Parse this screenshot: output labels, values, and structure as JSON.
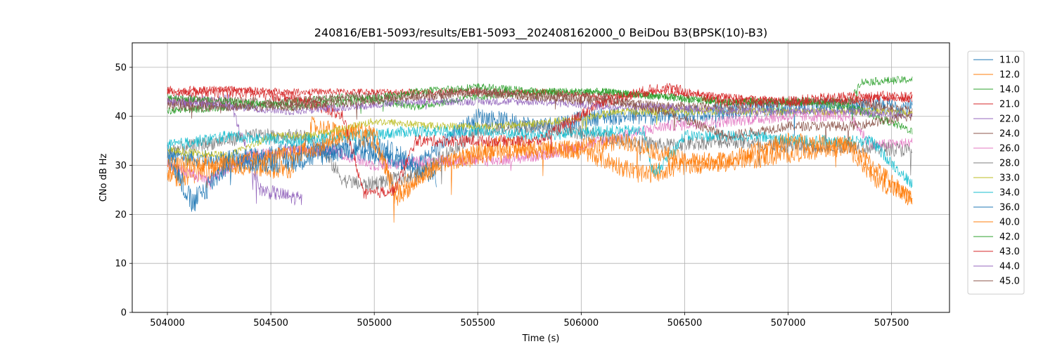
{
  "chart_data": {
    "type": "line",
    "title": "240816/EB1-5093/results/EB1-5093__202408162000_0 BeiDou B3(BPSK(10)-B3)",
    "xlabel": "Time (s)",
    "ylabel": "CNo dB Hz",
    "xlim": [
      503830,
      507780
    ],
    "ylim": [
      0,
      55
    ],
    "xticks": [
      504000,
      504500,
      505000,
      505500,
      506000,
      506500,
      507000,
      507500
    ],
    "yticks": [
      0,
      10,
      20,
      30,
      40,
      50
    ],
    "grid": true,
    "legend_position": "right",
    "series": [
      {
        "name": "11.0",
        "color": "#1f77b4",
        "start": 504000,
        "end": 507600,
        "points": [
          [
            504000,
            32
          ],
          [
            504300,
            31
          ],
          [
            504600,
            33
          ],
          [
            504900,
            33
          ],
          [
            505200,
            30
          ],
          [
            505500,
            40
          ],
          [
            505800,
            38
          ],
          [
            506100,
            40
          ],
          [
            506400,
            40
          ],
          [
            506700,
            41
          ],
          [
            507000,
            42
          ],
          [
            507300,
            42
          ],
          [
            507600,
            42
          ]
        ],
        "noise": 1.8
      },
      {
        "name": "12.0",
        "color": "#ff7f0e",
        "start": 504000,
        "end": 507600,
        "points": [
          [
            504000,
            27
          ],
          [
            504300,
            30
          ],
          [
            504600,
            29
          ],
          [
            504700,
            38
          ],
          [
            505000,
            35
          ],
          [
            505100,
            25
          ],
          [
            505300,
            30
          ],
          [
            505600,
            34
          ],
          [
            506000,
            33
          ],
          [
            506300,
            28
          ],
          [
            506500,
            30
          ],
          [
            506800,
            31
          ],
          [
            507100,
            33
          ],
          [
            507300,
            34
          ],
          [
            507400,
            28
          ],
          [
            507600,
            23
          ]
        ],
        "noise": 2.0
      },
      {
        "name": "14.0",
        "color": "#2ca02c",
        "start": 504000,
        "end": 507600,
        "points": [
          [
            504000,
            41
          ],
          [
            504300,
            42
          ],
          [
            504600,
            43
          ],
          [
            504900,
            44
          ],
          [
            505200,
            42
          ],
          [
            505500,
            44
          ],
          [
            505800,
            45
          ],
          [
            506100,
            45
          ],
          [
            506400,
            44
          ],
          [
            506700,
            43
          ],
          [
            507000,
            43
          ],
          [
            507300,
            43
          ],
          [
            507350,
            47
          ],
          [
            507600,
            47.5
          ]
        ],
        "noise": 0.8
      },
      {
        "name": "21.0",
        "color": "#d62728",
        "start": 504000,
        "end": 507600,
        "points": [
          [
            504000,
            45
          ],
          [
            504300,
            45.5
          ],
          [
            504600,
            45
          ],
          [
            504900,
            45
          ],
          [
            505200,
            45
          ],
          [
            505500,
            45
          ],
          [
            505800,
            45
          ],
          [
            506100,
            44
          ],
          [
            506400,
            45
          ],
          [
            506700,
            44
          ],
          [
            507000,
            43
          ],
          [
            507300,
            43
          ],
          [
            507400,
            44
          ],
          [
            507600,
            43.5
          ]
        ],
        "noise": 0.7
      },
      {
        "name": "22.0",
        "color": "#9467bd",
        "start": 504000,
        "end": 504650,
        "points": [
          [
            504000,
            43
          ],
          [
            504300,
            43
          ],
          [
            504450,
            25
          ],
          [
            504650,
            23
          ]
        ],
        "noise": 1.5
      },
      {
        "name": "24.0",
        "color": "#8c564b",
        "start": 504000,
        "end": 507600,
        "points": [
          [
            504000,
            43
          ],
          [
            504300,
            43
          ],
          [
            504600,
            43
          ],
          [
            504900,
            44
          ],
          [
            505200,
            44
          ],
          [
            505500,
            45
          ],
          [
            505800,
            44
          ],
          [
            506100,
            43
          ],
          [
            506400,
            42
          ],
          [
            506700,
            42
          ],
          [
            507000,
            43
          ],
          [
            507300,
            43
          ],
          [
            507600,
            41
          ]
        ],
        "noise": 1.0
      },
      {
        "name": "26.0",
        "color": "#e377c2",
        "start": 504000,
        "end": 507600,
        "points": [
          [
            504000,
            30
          ],
          [
            504200,
            27
          ],
          [
            504400,
            32
          ],
          [
            504600,
            33
          ],
          [
            504800,
            33
          ],
          [
            505000,
            30
          ],
          [
            505300,
            31
          ],
          [
            505600,
            31
          ],
          [
            505800,
            32
          ],
          [
            506100,
            35
          ],
          [
            506400,
            38
          ],
          [
            506700,
            39
          ],
          [
            507000,
            40
          ],
          [
            507300,
            40
          ],
          [
            507400,
            34
          ],
          [
            507600,
            34.5
          ]
        ],
        "noise": 1.2
      },
      {
        "name": "28.0",
        "color": "#7f7f7f",
        "start": 504000,
        "end": 507600,
        "points": [
          [
            504000,
            33
          ],
          [
            504400,
            36
          ],
          [
            504700,
            36
          ],
          [
            504850,
            27
          ],
          [
            504950,
            26
          ],
          [
            505200,
            28
          ],
          [
            505500,
            37
          ],
          [
            505800,
            38
          ],
          [
            506100,
            36
          ],
          [
            506400,
            34
          ],
          [
            506700,
            35
          ],
          [
            507000,
            34
          ],
          [
            507300,
            34
          ],
          [
            507600,
            33
          ]
        ],
        "noise": 1.5
      },
      {
        "name": "33.0",
        "color": "#bcbd22",
        "start": 504000,
        "end": 507600,
        "points": [
          [
            504000,
            33
          ],
          [
            504300,
            32
          ],
          [
            504500,
            36
          ],
          [
            504700,
            36
          ],
          [
            505000,
            39
          ],
          [
            505300,
            38
          ],
          [
            505600,
            38
          ],
          [
            505900,
            39
          ],
          [
            506200,
            41
          ],
          [
            506500,
            41
          ],
          [
            506800,
            41
          ],
          [
            507100,
            41
          ],
          [
            507400,
            41
          ],
          [
            507600,
            40.5
          ]
        ],
        "noise": 0.8
      },
      {
        "name": "34.0",
        "color": "#17becf",
        "start": 504000,
        "end": 507600,
        "points": [
          [
            504000,
            34
          ],
          [
            504300,
            36
          ],
          [
            504600,
            35
          ],
          [
            504900,
            36
          ],
          [
            505200,
            37
          ],
          [
            505500,
            37
          ],
          [
            505800,
            36
          ],
          [
            506100,
            37
          ],
          [
            506300,
            37
          ],
          [
            506350,
            28
          ],
          [
            506500,
            36
          ],
          [
            506800,
            36
          ],
          [
            507100,
            35
          ],
          [
            507400,
            35
          ],
          [
            507600,
            26
          ]
        ],
        "noise": 1.2
      },
      {
        "name": "36.0",
        "color": "#1f77b4",
        "start": 504000,
        "end": 505300,
        "points": [
          [
            504000,
            33
          ],
          [
            504120,
            22
          ],
          [
            504300,
            31
          ],
          [
            504600,
            31
          ],
          [
            504800,
            33
          ],
          [
            505000,
            34
          ],
          [
            505300,
            28
          ]
        ],
        "noise": 2.5
      },
      {
        "name": "40.0",
        "color": "#ff7f0e",
        "start": 504000,
        "end": 507600,
        "points": [
          [
            504000,
            30
          ],
          [
            504400,
            31
          ],
          [
            504700,
            33
          ],
          [
            504900,
            37
          ],
          [
            505000,
            37
          ],
          [
            505100,
            23
          ],
          [
            505300,
            30
          ],
          [
            505600,
            33
          ],
          [
            505900,
            33
          ],
          [
            506200,
            35
          ],
          [
            506500,
            31
          ],
          [
            506700,
            31
          ],
          [
            507000,
            35
          ],
          [
            507300,
            34
          ],
          [
            507600,
            23
          ]
        ],
        "noise": 1.8
      },
      {
        "name": "42.0",
        "color": "#2ca02c",
        "start": 504000,
        "end": 507600,
        "points": [
          [
            504000,
            44
          ],
          [
            504300,
            43
          ],
          [
            504600,
            42
          ],
          [
            504900,
            43
          ],
          [
            505200,
            45
          ],
          [
            505500,
            46
          ],
          [
            505800,
            45
          ],
          [
            506100,
            45
          ],
          [
            506400,
            44
          ],
          [
            506700,
            43
          ],
          [
            507000,
            43
          ],
          [
            507300,
            42
          ],
          [
            507600,
            37
          ]
        ],
        "noise": 0.8
      },
      {
        "name": "43.0",
        "color": "#d62728",
        "start": 504000,
        "end": 507600,
        "points": [
          [
            504000,
            45
          ],
          [
            504300,
            45
          ],
          [
            504600,
            44
          ],
          [
            504850,
            40
          ],
          [
            504950,
            24
          ],
          [
            505100,
            25
          ],
          [
            505200,
            35
          ],
          [
            505500,
            35
          ],
          [
            505800,
            35
          ],
          [
            506100,
            43
          ],
          [
            506400,
            46
          ],
          [
            506700,
            43
          ],
          [
            507000,
            43
          ],
          [
            507300,
            44
          ],
          [
            507600,
            44
          ]
        ],
        "noise": 1.2
      },
      {
        "name": "44.0",
        "color": "#9467bd",
        "start": 504000,
        "end": 507600,
        "points": [
          [
            504000,
            43
          ],
          [
            504300,
            42
          ],
          [
            504600,
            41
          ],
          [
            504900,
            42
          ],
          [
            505200,
            43
          ],
          [
            505500,
            43
          ],
          [
            505800,
            43
          ],
          [
            506100,
            42
          ],
          [
            506400,
            42
          ],
          [
            506700,
            41
          ],
          [
            507000,
            41
          ],
          [
            507300,
            41
          ],
          [
            507600,
            40
          ]
        ],
        "noise": 0.8
      },
      {
        "name": "45.0",
        "color": "#8c564b",
        "start": 504000,
        "end": 507600,
        "points": [
          [
            504000,
            42
          ],
          [
            504300,
            42
          ],
          [
            504600,
            42
          ],
          [
            504900,
            43
          ],
          [
            505200,
            44
          ],
          [
            505500,
            45
          ],
          [
            505800,
            44
          ],
          [
            506100,
            44
          ],
          [
            506400,
            41
          ],
          [
            506700,
            36
          ],
          [
            507000,
            38
          ],
          [
            507300,
            38
          ],
          [
            507600,
            40
          ]
        ],
        "noise": 1.0
      }
    ]
  }
}
